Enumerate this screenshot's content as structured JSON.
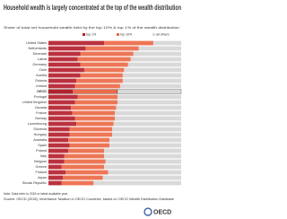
{
  "chart_data": {
    "type": "stacked-bar-horizontal",
    "title": "Household wealth is largely concentrated at the top of the wealth distribution",
    "subtitle": "Share of total net household wealth held by the top 10% & top 1% of the wealth distribution",
    "categories": [
      "United States",
      "Netherlands",
      "Denmark",
      "Latvia",
      "Germany",
      "Chile",
      "Austria",
      "Estonia",
      "Ireland",
      "OECD",
      "Portugal",
      "United Kingdom",
      "Canada",
      "France",
      "Norway",
      "Luxembourg",
      "Slovenia",
      "Hungary",
      "Australia",
      "Spain",
      "Poland",
      "Italy",
      "Belgium",
      "Greece",
      "Finland",
      "Japan",
      "Slovak Republic"
    ],
    "highlight": "OECD",
    "xlim": [
      0,
      100
    ],
    "series": [
      {
        "name": "top 1%",
        "color": "#b5202e",
        "values": [
          42,
          28,
          24,
          22,
          24,
          27,
          24,
          21,
          20,
          18,
          22,
          20,
          17,
          18,
          20,
          21,
          16,
          16,
          15,
          16,
          15,
          12,
          12,
          10,
          13,
          11,
          10
        ]
      },
      {
        "name": "top 10%",
        "color": "#ec6a48",
        "values": [
          37,
          40,
          40,
          40,
          36,
          30,
          32,
          35,
          34,
          34,
          30,
          32,
          34,
          32,
          30,
          28,
          32,
          32,
          31,
          30,
          27,
          30,
          31,
          32,
          32,
          30,
          24
        ]
      },
      {
        "name": "all others",
        "color": "#d9d9d9",
        "values": [
          21,
          32,
          36,
          38,
          40,
          43,
          44,
          44,
          46,
          48,
          48,
          48,
          49,
          50,
          50,
          51,
          52,
          52,
          54,
          54,
          58,
          58,
          57,
          58,
          55,
          59,
          66
        ]
      }
    ],
    "note": "Note: Data refer to 2015 or latest available year.",
    "source": "Source: OECD (2018), Inheritance Taxation in OECD Countries, based on OECD Wealth Distribution Database",
    "logo": "OECD"
  }
}
